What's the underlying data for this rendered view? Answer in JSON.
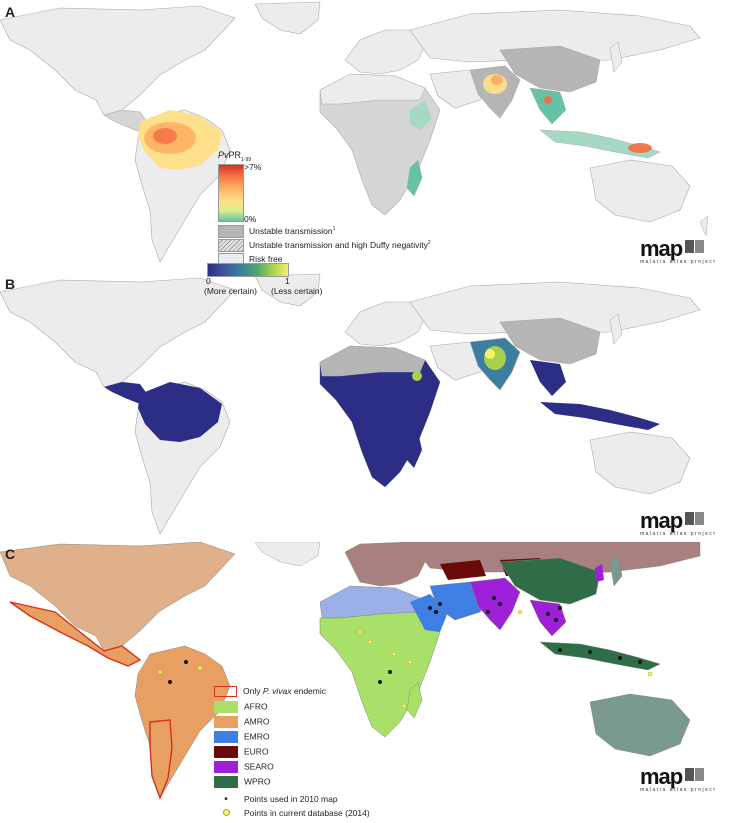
{
  "panels": {
    "a": {
      "letter": "A",
      "legend": {
        "title_italic": "Pv",
        "title_rest": "PR",
        "title_sub": "1-99",
        "scale_top": ">7%",
        "scale_bottom": "0%",
        "items": [
          {
            "label": "Unstable transmission",
            "sup": "1",
            "color": "#b5b5b5"
          },
          {
            "label": "Unstable transmission and high Duffy negativity",
            "sup": "2",
            "color": "#d5d5d5"
          },
          {
            "label": "Risk free",
            "sup": "",
            "color": "#ececec"
          }
        ]
      }
    },
    "b": {
      "letter": "B",
      "legend": {
        "tick_min": "0",
        "tick_max": "1",
        "label_min": "(More certain)",
        "label_max": "(Less certain)"
      }
    },
    "c": {
      "letter": "C",
      "legend": {
        "endemic_prefix": "Only ",
        "endemic_italic": "P. vivax",
        "endemic_suffix": " endemic",
        "regions": [
          {
            "label": "AFRO",
            "color": "#a8e06a"
          },
          {
            "label": "AMRO",
            "color": "#e89f62"
          },
          {
            "label": "EMRO",
            "color": "#3f7ee3"
          },
          {
            "label": "EURO",
            "color": "#6b0a0a"
          },
          {
            "label": "SEARO",
            "color": "#9d1fd6"
          },
          {
            "label": "WPRO",
            "color": "#2e6d48"
          }
        ],
        "points_2010": "Points used in 2010 map",
        "points_2014": "Points in current database (2014)"
      }
    }
  },
  "logo": {
    "word": "map",
    "tagline": "malaria atlas project"
  }
}
